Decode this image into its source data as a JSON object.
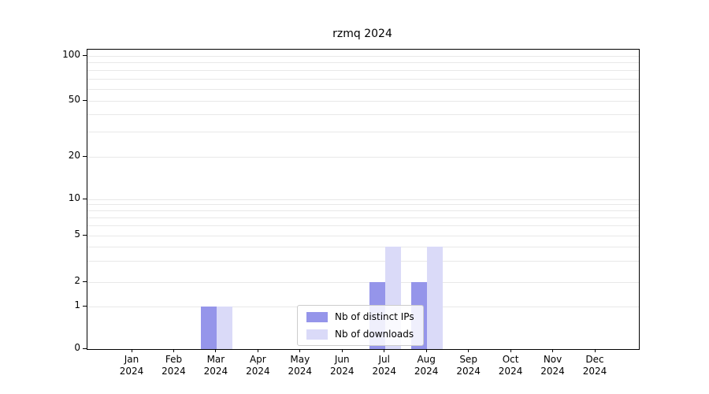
{
  "chart_data": {
    "type": "bar",
    "title": "rzmq 2024",
    "categories": [
      "Jan",
      "Feb",
      "Mar",
      "Apr",
      "May",
      "Jun",
      "Jul",
      "Aug",
      "Sep",
      "Oct",
      "Nov",
      "Dec"
    ],
    "year_label": "2024",
    "series": [
      {
        "name": "Nb of distinct IPs",
        "color": "#9595ea",
        "values": [
          0,
          0,
          1,
          0,
          0,
          0,
          2,
          2,
          0,
          0,
          0,
          0
        ]
      },
      {
        "name": "Nb of downloads",
        "color": "#dadaf8",
        "values": [
          0,
          0,
          1,
          0,
          0,
          0,
          4,
          4,
          0,
          0,
          0,
          0
        ]
      }
    ],
    "y_ticks": [
      100,
      50,
      20,
      10,
      5,
      2,
      1,
      0
    ],
    "y_scale": "log-with-zero",
    "ylim": [
      0,
      115
    ],
    "grid": "horizontal-minor-log",
    "legend_position": "lower-center",
    "colors": {
      "distinct_ips": "#9595ea",
      "downloads": "#dadaf8",
      "gridline": "#e8e8e8",
      "frame": "#000000"
    }
  }
}
